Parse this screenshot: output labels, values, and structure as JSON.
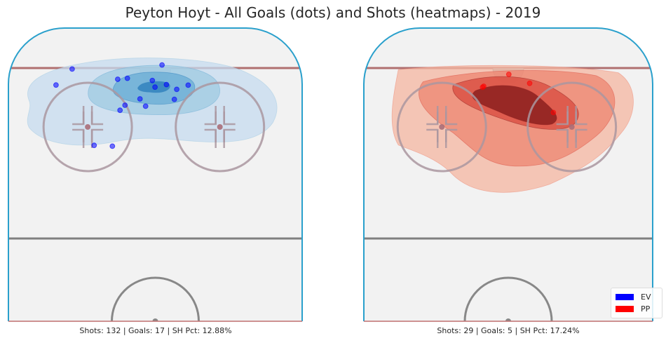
{
  "title": "Peyton Hoyt - All Goals (dots) and Shots (heatmaps) - 2019",
  "legend": [
    {
      "label": "EV",
      "color": "#0000ff"
    },
    {
      "label": "PP",
      "color": "#ff0000"
    }
  ],
  "panels": [
    {
      "stats_text": "Shots: 132 | Goals: 17 | SH Pct: 12.88%"
    },
    {
      "stats_text": "Shots: 29 | Goals: 5 | SH Pct: 17.24%"
    }
  ],
  "chart_data": [
    {
      "type": "scatter",
      "series": [
        {
          "name": "EV",
          "color": "#0000ff",
          "heatmap_palette": [
            "#c6dbef",
            "#9ecae1",
            "#6baed6",
            "#3182bd"
          ],
          "goals": [
            {
              "x": 0.217,
              "y": 0.042
            },
            {
              "x": 0.162,
              "y": 0.156
            },
            {
              "x": 0.523,
              "y": 0.013
            },
            {
              "x": 0.372,
              "y": 0.115
            },
            {
              "x": 0.405,
              "y": 0.108
            },
            {
              "x": 0.49,
              "y": 0.124
            },
            {
              "x": 0.612,
              "y": 0.157
            },
            {
              "x": 0.538,
              "y": 0.153
            },
            {
              "x": 0.499,
              "y": 0.171
            },
            {
              "x": 0.573,
              "y": 0.187
            },
            {
              "x": 0.448,
              "y": 0.255
            },
            {
              "x": 0.565,
              "y": 0.258
            },
            {
              "x": 0.397,
              "y": 0.3
            },
            {
              "x": 0.467,
              "y": 0.307
            },
            {
              "x": 0.38,
              "y": 0.336
            },
            {
              "x": 0.292,
              "y": 0.586
            },
            {
              "x": 0.354,
              "y": 0.592
            }
          ]
        },
        {
          "name": "PP",
          "color": "#ff0000",
          "heatmap_palette": [
            "#f4b6a0",
            "#ee8470",
            "#d94d41",
            "#8c1e1e"
          ],
          "goals": [
            {
              "x": 0.502,
              "y": 0.08
            },
            {
              "x": 0.574,
              "y": 0.144
            },
            {
              "x": 0.415,
              "y": 0.165
            },
            {
              "x": 0.411,
              "y": 0.172
            },
            {
              "x": 0.656,
              "y": 0.352
            }
          ]
        }
      ]
    }
  ]
}
